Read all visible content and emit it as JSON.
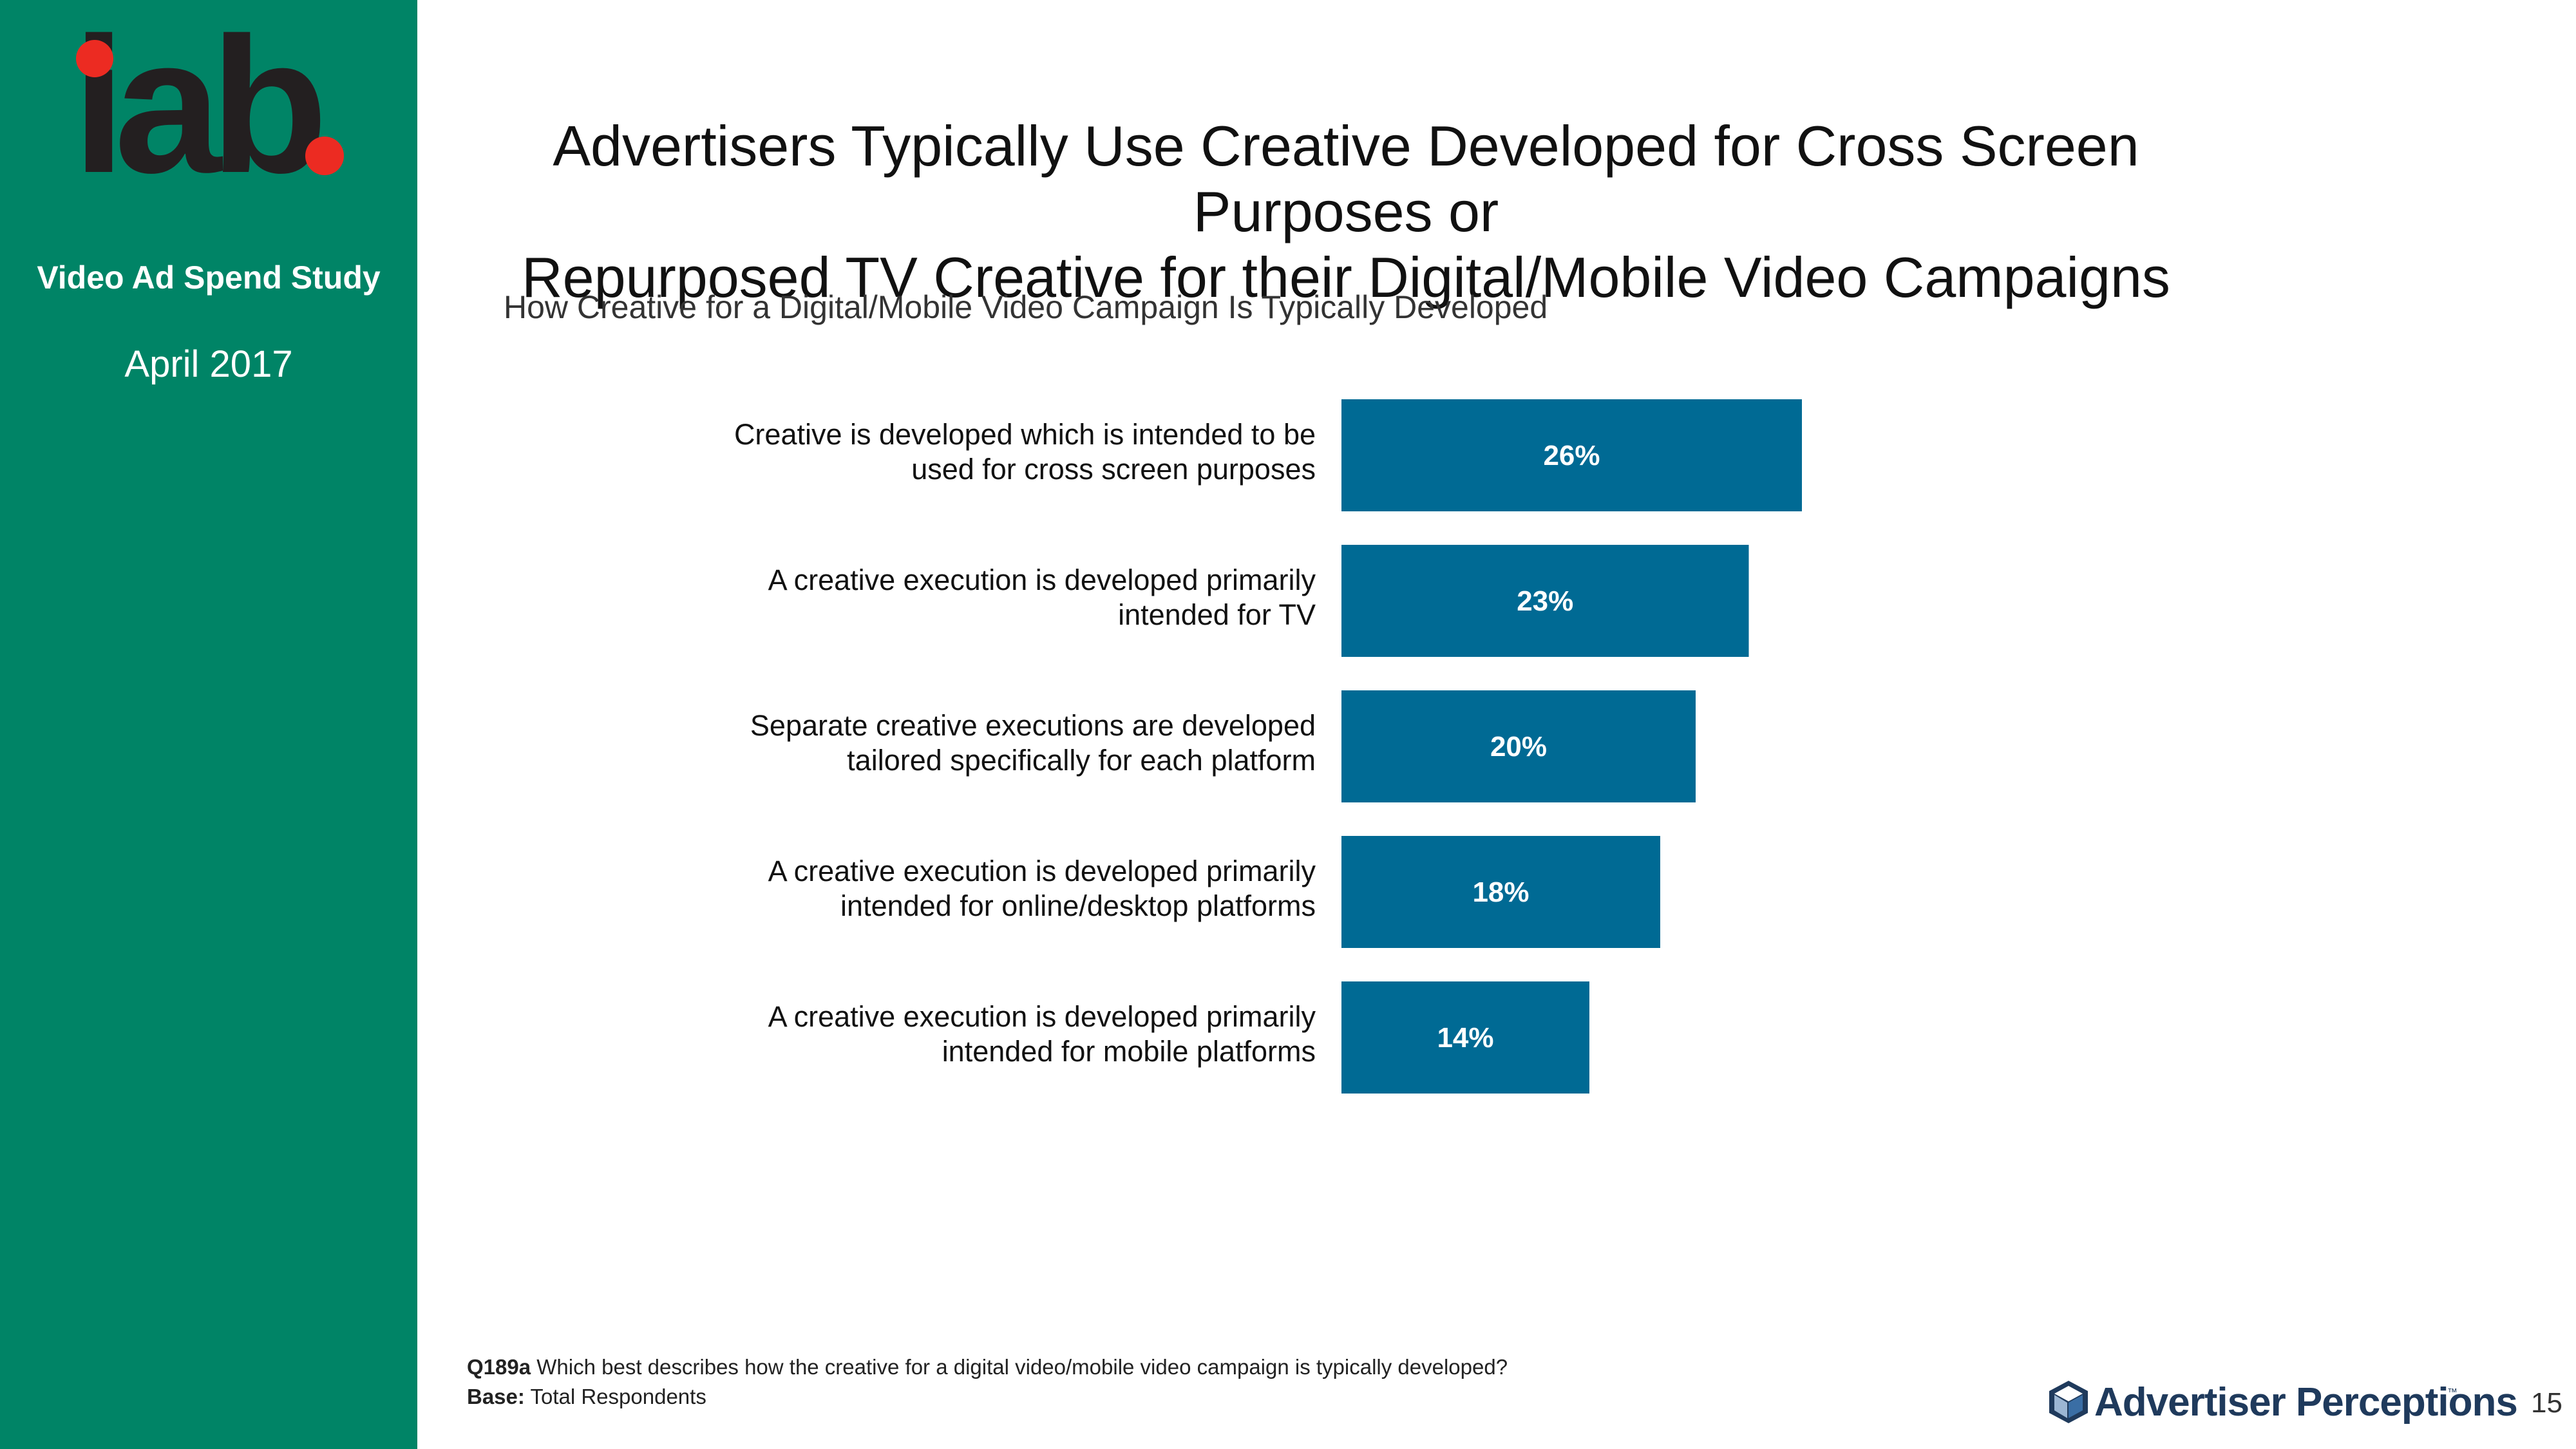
{
  "sidebar": {
    "logo_text": "iab",
    "study_name": "Video Ad Spend Study",
    "date": "April 2017",
    "background_color": "#008466",
    "logo_accent_color": "#ec2b22"
  },
  "title": {
    "line1": "Advertisers Typically Use Creative Developed for Cross Screen Purposes or",
    "line2": "Repurposed TV Creative for their Digital/Mobile Video Campaigns"
  },
  "subtitle": "How Creative for a Digital/Mobile Video Campaign Is Typically Developed",
  "chart_data": {
    "type": "bar",
    "orientation": "horizontal",
    "title": "How Creative for a Digital/Mobile Video Campaign Is Typically Developed",
    "categories": [
      [
        "Creative is developed which is intended to be",
        "used for cross screen purposes"
      ],
      [
        "A creative execution is developed primarily",
        "intended for TV"
      ],
      [
        "Separate creative executions are developed",
        "tailored specifically for each platform"
      ],
      [
        "A creative execution is developed primarily",
        "intended for online/desktop platforms"
      ],
      [
        "A creative execution is developed primarily",
        "intended for mobile platforms"
      ]
    ],
    "values": [
      26,
      23,
      20,
      18,
      14
    ],
    "value_labels": [
      "26%",
      "23%",
      "20%",
      "18%",
      "14%"
    ],
    "unit": "%",
    "xlim": [
      0,
      100
    ],
    "bar_color": "#006a94",
    "label_color": "#ffffff",
    "grid": false,
    "legend": "none"
  },
  "footnote": {
    "question_id": "Q189a",
    "question_text": "Which best describes how the creative for a digital video/mobile video campaign is typically developed?",
    "base_label": "Base:",
    "base_text": "Total Respondents"
  },
  "brand": {
    "name": "Advertiser Perceptions",
    "trademark": "™",
    "icon": "cube-logo-icon",
    "color": "#1f3a5c"
  },
  "page_number": "15"
}
